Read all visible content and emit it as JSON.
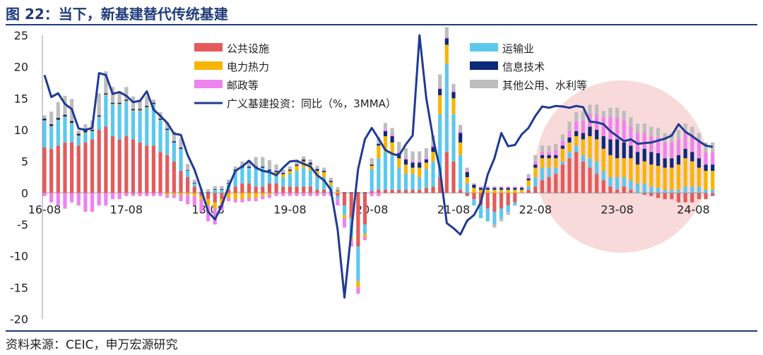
{
  "title": "图 22：当下，新基建替代传统基建",
  "source": "资料来源：CEIC，申万宏源研究",
  "colors": {
    "public": "#e35b5b",
    "transport": "#5cc8ee",
    "power": "#f7b500",
    "info": "#0d2a78",
    "postal": "#ee82ee",
    "other": "#bdbdbd",
    "line": "#1f3a93",
    "highlight": "#f4c6c6"
  },
  "chart_data": {
    "type": "bar",
    "stacked": true,
    "x_tick_labels": [
      "16-08",
      "17-08",
      "18-08",
      "19-08",
      "20-08",
      "21-08",
      "22-08",
      "23-08",
      "24-08"
    ],
    "ylim": [
      -20,
      25
    ],
    "yticks": [
      25,
      20,
      15,
      10,
      5,
      0,
      -5,
      -10,
      -15,
      -20
    ],
    "legend": [
      {
        "key": "public",
        "label": "公共设施",
        "kind": "bar"
      },
      {
        "key": "transport",
        "label": "运输业",
        "kind": "bar"
      },
      {
        "key": "power",
        "label": "电力热力",
        "kind": "bar"
      },
      {
        "key": "info",
        "label": "信息技术",
        "kind": "bar"
      },
      {
        "key": "postal",
        "label": "邮政等",
        "kind": "bar"
      },
      {
        "key": "other",
        "label": "其他公用、水利等",
        "kind": "bar"
      },
      {
        "key": "line",
        "label": "广义基建投资：同比（%，3MMA）",
        "kind": "line"
      }
    ],
    "series_components": [
      [
        7.2,
        4.2,
        0.1,
        0.3,
        -0.5,
        0.5
      ],
      [
        7.0,
        3.5,
        0.1,
        0.3,
        -1.5,
        2.0
      ],
      [
        7.5,
        4.0,
        0.1,
        0.3,
        -2.0,
        2.5
      ],
      [
        8.0,
        4.0,
        0.1,
        0.3,
        -2.5,
        3.0
      ],
      [
        8.0,
        3.0,
        0.1,
        0.3,
        -1.5,
        3.5
      ],
      [
        7.5,
        1.5,
        0.1,
        0.3,
        -2.0,
        0.5
      ],
      [
        8.0,
        1.5,
        0.1,
        0.3,
        -3.0,
        1.0
      ],
      [
        8.5,
        1.2,
        0.1,
        0.2,
        -3.0,
        1.5
      ],
      [
        10.0,
        2.0,
        0.1,
        0.2,
        -2.0,
        3.5
      ],
      [
        10.5,
        5.0,
        0.1,
        0.2,
        -2.0,
        3.5
      ],
      [
        9.0,
        5.0,
        0.1,
        0.2,
        -1.0,
        2.5
      ],
      [
        8.5,
        5.5,
        0.1,
        0.2,
        -1.0,
        1.5
      ],
      [
        9.0,
        5.5,
        0.1,
        0.2,
        -0.5,
        2.0
      ],
      [
        8.5,
        4.5,
        0.1,
        0.2,
        -0.5,
        2.0
      ],
      [
        8.0,
        5.0,
        0.1,
        0.2,
        -0.5,
        1.5
      ],
      [
        7.5,
        6.0,
        0.1,
        0.2,
        -0.5,
        1.5
      ],
      [
        7.5,
        6.5,
        0.1,
        0.2,
        -0.5,
        0.5
      ],
      [
        6.5,
        5.0,
        0.1,
        0.2,
        -0.5,
        1.0
      ],
      [
        6.0,
        4.0,
        -0.3,
        0.2,
        -0.5,
        1.0
      ],
      [
        5.0,
        3.0,
        -0.3,
        0.2,
        -0.5,
        1.5
      ],
      [
        3.5,
        3.5,
        -0.3,
        0.2,
        -1.0,
        1.5
      ],
      [
        2.5,
        1.0,
        -0.3,
        0.1,
        -1.5,
        1.0
      ],
      [
        1.0,
        0.5,
        -0.5,
        0.1,
        -1.5,
        0.5
      ],
      [
        -0.5,
        0.0,
        -0.5,
        0.1,
        -2.0,
        0.5
      ],
      [
        -1.0,
        0.0,
        -1.0,
        0.1,
        -2.5,
        0.5
      ],
      [
        -1.5,
        0.5,
        -1.0,
        0.1,
        -2.5,
        0.5
      ],
      [
        -1.0,
        0.5,
        -0.8,
        0.1,
        -1.0,
        0.5
      ],
      [
        0.5,
        1.0,
        -0.8,
        0.1,
        -0.5,
        0.5
      ],
      [
        1.0,
        2.5,
        -1.0,
        0.2,
        -0.5,
        0.5
      ],
      [
        1.5,
        2.5,
        -1.0,
        0.2,
        -0.5,
        0.8
      ],
      [
        1.5,
        2.5,
        -0.8,
        0.2,
        -0.5,
        1.0
      ],
      [
        1.0,
        3.0,
        -0.8,
        0.2,
        -0.5,
        1.5
      ],
      [
        1.0,
        3.0,
        -0.5,
        0.2,
        -0.5,
        1.5
      ],
      [
        1.5,
        2.0,
        -0.3,
        0.2,
        -0.5,
        1.5
      ],
      [
        1.5,
        1.5,
        0.3,
        0.2,
        -0.5,
        1.0
      ],
      [
        1.0,
        1.5,
        0.5,
        0.2,
        -0.5,
        0.5
      ],
      [
        1.0,
        2.0,
        0.5,
        0.2,
        -0.5,
        0.5
      ],
      [
        1.0,
        2.5,
        0.8,
        0.2,
        -0.5,
        0.5
      ],
      [
        1.0,
        3.0,
        1.0,
        0.3,
        -0.5,
        0.5
      ],
      [
        1.0,
        2.5,
        1.0,
        0.3,
        -0.5,
        0.5
      ],
      [
        0.5,
        2.0,
        1.0,
        0.3,
        -0.5,
        0.5
      ],
      [
        0.5,
        2.0,
        0.8,
        0.2,
        -0.5,
        0.5
      ],
      [
        0.2,
        1.0,
        0.5,
        0.2,
        -0.5,
        0.5
      ],
      [
        -0.5,
        -0.5,
        0.3,
        0.1,
        -1.0,
        0.5
      ],
      [
        -2.0,
        -1.5,
        -0.5,
        0.1,
        -1.5,
        0.0
      ],
      [
        -4.0,
        -3.0,
        -0.5,
        0.1,
        -1.0,
        0.0
      ],
      [
        -8.5,
        -5.5,
        -1.0,
        0.1,
        -1.0,
        0.0
      ],
      [
        -5.0,
        -1.5,
        -0.5,
        0.1,
        -0.5,
        0.0
      ],
      [
        0.3,
        3.5,
        0.5,
        0.2,
        -0.5,
        1.0
      ],
      [
        0.5,
        5.0,
        2.0,
        0.3,
        -0.5,
        1.0
      ],
      [
        0.5,
        6.0,
        2.5,
        0.8,
        0.3,
        1.0
      ],
      [
        0.5,
        5.5,
        2.0,
        1.0,
        0.3,
        1.0
      ],
      [
        0.5,
        3.5,
        1.5,
        0.8,
        0.3,
        1.5
      ],
      [
        0.5,
        2.5,
        1.5,
        0.8,
        0.3,
        1.5
      ],
      [
        0.5,
        2.5,
        1.0,
        0.8,
        0.3,
        1.5
      ],
      [
        0.5,
        2.0,
        1.5,
        0.8,
        0.3,
        1.5
      ],
      [
        0.8,
        3.0,
        1.0,
        0.5,
        0.3,
        1.5
      ],
      [
        1.0,
        4.0,
        1.5,
        0.8,
        0.3,
        1.5
      ],
      [
        2.5,
        10.0,
        3.0,
        1.0,
        0.3,
        2.0
      ],
      [
        6.5,
        14.0,
        3.0,
        1.0,
        0.3,
        1.5
      ],
      [
        5.0,
        7.5,
        2.5,
        1.0,
        0.3,
        1.0
      ],
      [
        0.5,
        5.5,
        2.0,
        1.5,
        0.3,
        1.0
      ],
      [
        -0.5,
        1.5,
        1.0,
        0.8,
        0.2,
        0.5
      ],
      [
        -1.0,
        -1.0,
        0.8,
        0.5,
        0.2,
        0.0
      ],
      [
        -2.0,
        -2.0,
        0.5,
        0.3,
        0.2,
        0.0
      ],
      [
        -2.5,
        -2.0,
        0.5,
        0.3,
        0.2,
        0.0
      ],
      [
        -3.0,
        -2.0,
        0.5,
        0.3,
        0.2,
        -0.5
      ],
      [
        -2.5,
        -1.5,
        0.5,
        0.3,
        0.2,
        -0.5
      ],
      [
        -2.0,
        -1.0,
        0.5,
        0.3,
        0.2,
        -0.5
      ],
      [
        -1.5,
        -0.5,
        0.5,
        0.3,
        0.2,
        0.0
      ],
      [
        0.0,
        0.0,
        0.5,
        0.3,
        0.2,
        0.0
      ],
      [
        0.5,
        0.5,
        1.0,
        0.3,
        0.2,
        0.5
      ],
      [
        1.0,
        1.5,
        1.5,
        0.5,
        0.5,
        1.0
      ],
      [
        2.0,
        2.0,
        1.5,
        0.5,
        0.5,
        1.0
      ],
      [
        2.5,
        1.5,
        1.5,
        0.5,
        0.5,
        1.0
      ],
      [
        3.0,
        1.0,
        1.5,
        0.5,
        0.8,
        1.0
      ],
      [
        4.5,
        0.5,
        2.0,
        0.5,
        0.8,
        1.0
      ],
      [
        5.5,
        1.0,
        1.5,
        0.8,
        1.0,
        1.5
      ],
      [
        6.5,
        1.0,
        1.5,
        0.8,
        1.5,
        1.5
      ],
      [
        5.0,
        1.0,
        2.5,
        1.0,
        2.0,
        1.5
      ],
      [
        4.0,
        1.5,
        3.5,
        1.5,
        2.0,
        1.5
      ],
      [
        3.0,
        2.0,
        3.5,
        1.5,
        2.5,
        1.5
      ],
      [
        2.0,
        1.5,
        3.5,
        2.0,
        3.0,
        1.0
      ],
      [
        1.0,
        1.5,
        3.5,
        2.5,
        3.5,
        1.5
      ],
      [
        0.5,
        2.0,
        3.0,
        3.0,
        3.5,
        1.5
      ],
      [
        1.0,
        1.5,
        3.0,
        2.5,
        3.5,
        1.5
      ],
      [
        0.5,
        1.5,
        3.5,
        2.0,
        3.0,
        1.5
      ],
      [
        0.0,
        1.5,
        3.0,
        2.0,
        3.0,
        1.5
      ],
      [
        -0.3,
        1.5,
        3.5,
        2.0,
        2.5,
        1.5
      ],
      [
        -0.5,
        1.0,
        3.5,
        2.0,
        2.5,
        1.5
      ],
      [
        -0.8,
        0.8,
        3.5,
        2.0,
        2.5,
        1.5
      ],
      [
        -1.0,
        0.5,
        3.5,
        1.5,
        2.5,
        1.5
      ],
      [
        -1.0,
        0.5,
        3.5,
        1.5,
        2.5,
        1.5
      ],
      [
        -1.5,
        0.5,
        4.0,
        1.5,
        2.5,
        1.5
      ],
      [
        -1.5,
        1.0,
        4.5,
        1.5,
        2.5,
        1.5
      ],
      [
        -1.5,
        1.0,
        4.0,
        1.5,
        2.5,
        1.5
      ],
      [
        -1.0,
        1.0,
        3.0,
        1.5,
        2.5,
        1.5
      ],
      [
        -1.0,
        0.5,
        3.0,
        1.0,
        2.0,
        1.5
      ],
      [
        -0.5,
        0.5,
        3.0,
        1.0,
        2.0,
        1.5
      ]
    ],
    "line_values": [
      18.7,
      15.2,
      15.8,
      14.1,
      13.3,
      10.2,
      10.0,
      10.3,
      19.0,
      18.7,
      15.7,
      16.0,
      15.4,
      14.4,
      14.6,
      16.1,
      13.2,
      12.2,
      11.1,
      9.4,
      9.2,
      6.0,
      3.7,
      0.5,
      -3.0,
      -4.2,
      -2.0,
      1.0,
      3.5,
      4.2,
      5.1,
      4.0,
      3.5,
      3.3,
      2.8,
      4.0,
      5.0,
      5.1,
      4.6,
      4.2,
      2.8,
      2.0,
      0.5,
      -5.8,
      -16.6,
      -6.0,
      3.8,
      8.5,
      10.3,
      8.6,
      6.8,
      6.2,
      5.9,
      7.7,
      9.1,
      25.0,
      15.0,
      8.6,
      3.8,
      -4.8,
      -5.6,
      -6.6,
      -4.4,
      -3.5,
      -1.5,
      2.9,
      5.5,
      9.5,
      7.4,
      7.6,
      9.3,
      10.3,
      12.2,
      13.7,
      13.5,
      13.8,
      13.7,
      13.5,
      13.8,
      13.6,
      11.3,
      11.2,
      10.9,
      9.8,
      9.0,
      8.2,
      8.5,
      7.8,
      7.9,
      8.0,
      8.3,
      8.6,
      9.1,
      10.9,
      9.7,
      9.0,
      8.2,
      7.5,
      7.3
    ]
  }
}
